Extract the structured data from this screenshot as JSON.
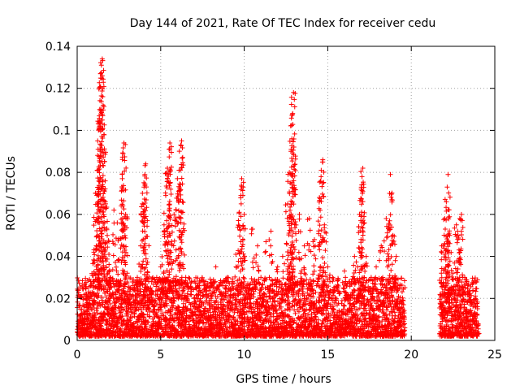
{
  "chart_data": {
    "type": "scatter",
    "title": "Day 144 of 2021, Rate Of TEC Index for receiver cedu",
    "xlabel": "GPS time / hours",
    "ylabel": "ROTI / TECUs",
    "xlim": [
      0,
      25
    ],
    "ylim": [
      0,
      0.14
    ],
    "x_ticks": [
      0,
      5,
      10,
      15,
      20,
      25
    ],
    "y_ticks": [
      0,
      0.02,
      0.04,
      0.06,
      0.08,
      0.1,
      0.12,
      0.14
    ],
    "x_tick_labels": [
      "0",
      "5",
      "10",
      "15",
      "20",
      "25"
    ],
    "y_tick_labels": [
      "0",
      "0.02",
      "0.04",
      "0.06",
      "0.08",
      "0.1",
      "0.12",
      "0.14"
    ],
    "grid": true,
    "marker": "+",
    "color": "#ff0000",
    "data_gap_hours": [
      19.6,
      21.7
    ],
    "series": [
      {
        "points": [
          [
            0.0,
            0.004
          ],
          [
            0.1,
            0.006
          ],
          [
            0.2,
            0.012
          ],
          [
            0.3,
            0.008
          ],
          [
            0.4,
            0.005
          ],
          [
            0.5,
            0.022
          ],
          [
            0.6,
            0.018
          ],
          [
            0.7,
            0.01
          ],
          [
            0.8,
            0.028
          ],
          [
            0.9,
            0.031
          ],
          [
            1.0,
            0.042
          ],
          [
            1.1,
            0.07
          ],
          [
            1.2,
            0.081
          ],
          [
            1.25,
            0.091
          ],
          [
            1.3,
            0.104
          ],
          [
            1.35,
            0.11
          ],
          [
            1.4,
            0.127
          ],
          [
            1.45,
            0.131
          ],
          [
            1.5,
            0.134
          ],
          [
            1.55,
            0.112
          ],
          [
            1.6,
            0.098
          ],
          [
            1.7,
            0.065
          ],
          [
            1.8,
            0.05
          ],
          [
            1.9,
            0.041
          ],
          [
            2.0,
            0.03
          ],
          [
            2.2,
            0.062
          ],
          [
            2.4,
            0.056
          ],
          [
            2.6,
            0.044
          ],
          [
            2.7,
            0.077
          ],
          [
            2.75,
            0.089
          ],
          [
            2.8,
            0.094
          ],
          [
            2.9,
            0.06
          ],
          [
            3.0,
            0.032
          ],
          [
            3.2,
            0.025
          ],
          [
            3.4,
            0.018
          ],
          [
            3.6,
            0.03
          ],
          [
            3.8,
            0.045
          ],
          [
            3.9,
            0.065
          ],
          [
            4.0,
            0.073
          ],
          [
            4.05,
            0.079
          ],
          [
            4.1,
            0.084
          ],
          [
            4.2,
            0.057
          ],
          [
            4.4,
            0.025
          ],
          [
            4.6,
            0.016
          ],
          [
            4.8,
            0.022
          ],
          [
            5.0,
            0.035
          ],
          [
            5.2,
            0.055
          ],
          [
            5.3,
            0.069
          ],
          [
            5.4,
            0.082
          ],
          [
            5.5,
            0.091
          ],
          [
            5.55,
            0.094
          ],
          [
            5.6,
            0.072
          ],
          [
            5.8,
            0.06
          ],
          [
            6.0,
            0.077
          ],
          [
            6.1,
            0.081
          ],
          [
            6.2,
            0.093
          ],
          [
            6.25,
            0.095
          ],
          [
            6.3,
            0.066
          ],
          [
            6.5,
            0.03
          ],
          [
            6.8,
            0.015
          ],
          [
            7.0,
            0.02
          ],
          [
            7.3,
            0.025
          ],
          [
            7.6,
            0.028
          ],
          [
            8.0,
            0.02
          ],
          [
            8.3,
            0.035
          ],
          [
            8.6,
            0.022
          ],
          [
            9.0,
            0.03
          ],
          [
            9.3,
            0.028
          ],
          [
            9.5,
            0.041
          ],
          [
            9.7,
            0.061
          ],
          [
            9.8,
            0.069
          ],
          [
            9.85,
            0.077
          ],
          [
            10.0,
            0.06
          ],
          [
            10.3,
            0.025
          ],
          [
            10.5,
            0.053
          ],
          [
            10.8,
            0.045
          ],
          [
            11.0,
            0.03
          ],
          [
            11.3,
            0.047
          ],
          [
            11.6,
            0.052
          ],
          [
            12.0,
            0.035
          ],
          [
            12.3,
            0.04
          ],
          [
            12.6,
            0.065
          ],
          [
            12.7,
            0.08
          ],
          [
            12.8,
            0.09
          ],
          [
            12.85,
            0.096
          ],
          [
            12.9,
            0.108
          ],
          [
            12.95,
            0.118
          ],
          [
            13.0,
            0.072
          ],
          [
            13.3,
            0.06
          ],
          [
            13.6,
            0.045
          ],
          [
            13.9,
            0.058
          ],
          [
            14.2,
            0.048
          ],
          [
            14.5,
            0.068
          ],
          [
            14.6,
            0.078
          ],
          [
            14.7,
            0.086
          ],
          [
            14.8,
            0.055
          ],
          [
            15.0,
            0.035
          ],
          [
            15.3,
            0.03
          ],
          [
            15.6,
            0.025
          ],
          [
            16.0,
            0.033
          ],
          [
            16.3,
            0.028
          ],
          [
            16.6,
            0.04
          ],
          [
            16.9,
            0.06
          ],
          [
            17.0,
            0.072
          ],
          [
            17.05,
            0.078
          ],
          [
            17.1,
            0.082
          ],
          [
            17.3,
            0.04
          ],
          [
            17.6,
            0.03
          ],
          [
            17.9,
            0.035
          ],
          [
            18.2,
            0.045
          ],
          [
            18.5,
            0.058
          ],
          [
            18.7,
            0.07
          ],
          [
            18.75,
            0.079
          ],
          [
            18.9,
            0.05
          ],
          [
            19.1,
            0.04
          ],
          [
            19.3,
            0.025
          ],
          [
            19.5,
            0.015
          ],
          [
            21.8,
            0.032
          ],
          [
            21.9,
            0.045
          ],
          [
            22.0,
            0.058
          ],
          [
            22.1,
            0.066
          ],
          [
            22.15,
            0.073
          ],
          [
            22.2,
            0.079
          ],
          [
            22.3,
            0.05
          ],
          [
            22.5,
            0.032
          ],
          [
            22.7,
            0.055
          ],
          [
            22.8,
            0.05
          ],
          [
            22.9,
            0.058
          ],
          [
            23.0,
            0.06
          ],
          [
            23.2,
            0.03
          ],
          [
            23.4,
            0.022
          ],
          [
            23.6,
            0.018
          ],
          [
            23.8,
            0.012
          ],
          [
            24.0,
            0.008
          ]
        ]
      }
    ],
    "noise_band": {
      "segments": [
        [
          0.0,
          19.6
        ],
        [
          21.7,
          24.0
        ]
      ],
      "y_range": [
        0.002,
        0.03
      ]
    }
  }
}
